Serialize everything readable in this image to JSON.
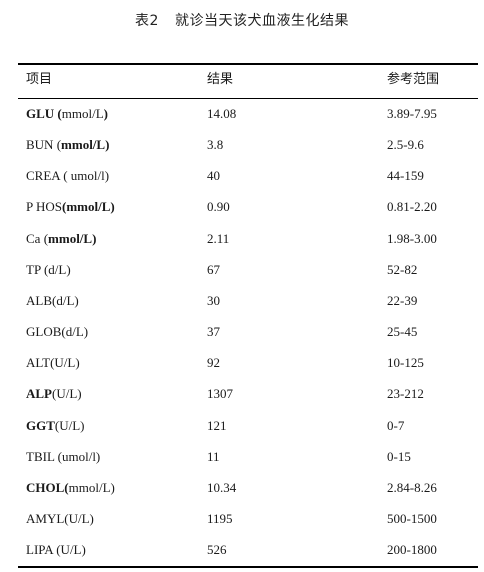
{
  "title": {
    "number": "表2",
    "text": "就诊当天该犬血液生化结果"
  },
  "columns": [
    "项目",
    "结果",
    "参考范围"
  ],
  "rows": [
    {
      "bold": "GLU (",
      "rest": "mmol/L",
      "tail": ")",
      "result": "14.08",
      "range": "3.89-7.95"
    },
    {
      "bold": "",
      "rest": "BUN (",
      "boldtail": "mmol/L)",
      "tail": "",
      "result": "3.8",
      "range": "2.5-9.6"
    },
    {
      "bold": "",
      "rest": "CREA ( umol/l)",
      "tail": "",
      "result": "40",
      "range": "44-159"
    },
    {
      "bold": "",
      "rest": "P HOS",
      "boldtail": "(mmol/L)",
      "tail": "",
      "result": "0.90",
      "range": "0.81-2.20"
    },
    {
      "bold": "",
      "rest": "Ca (",
      "boldtail": "mmol/L)",
      "tail": "",
      "result": "2.11",
      "range": "1.98-3.00"
    },
    {
      "bold": "",
      "rest": "TP (d/L)",
      "tail": "",
      "result": "67",
      "range": "52-82"
    },
    {
      "bold": "",
      "rest": "ALB(d/L)",
      "tail": "",
      "result": "30",
      "range": "22-39"
    },
    {
      "bold": "",
      "rest": "GLOB(d/L)",
      "tail": "",
      "result": "37",
      "range": "25-45"
    },
    {
      "bold": "",
      "rest": "ALT(U/L)",
      "tail": "",
      "result": "92",
      "range": "10-125"
    },
    {
      "bold": "ALP",
      "rest": "(U/L)",
      "tail": "",
      "result": "1307",
      "range": "23-212"
    },
    {
      "bold": "GGT",
      "rest": "(U/L)",
      "tail": "",
      "result": "121",
      "range": "0-7"
    },
    {
      "bold": "",
      "rest": "TBIL (umol/l)",
      "tail": "",
      "result": "11",
      "range": "0-15"
    },
    {
      "bold": "CHOL(",
      "rest": "mmol/L)",
      "tail": "",
      "result": "10.34",
      "range": "2.84-8.26"
    },
    {
      "bold": "",
      "rest": "AMYL(U/L)",
      "tail": "",
      "result": "1195",
      "range": "500-1500"
    },
    {
      "bold": "",
      "rest": "LIPA (U/L)",
      "tail": "",
      "result": "526",
      "range": "200-1800"
    }
  ]
}
